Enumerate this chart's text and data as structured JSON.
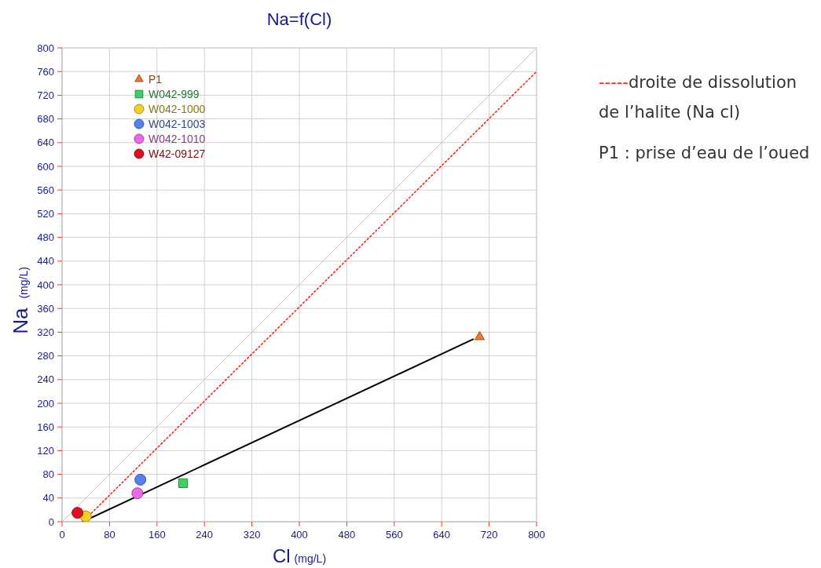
{
  "chart_data": {
    "type": "scatter",
    "title": "Na=f(Cl)",
    "xlabel": "Cl (mg/L)",
    "ylabel": "Na (mg/L)",
    "xlim": [
      0,
      800
    ],
    "ylim": [
      0,
      800
    ],
    "xticks": [
      0,
      80,
      160,
      240,
      320,
      400,
      480,
      560,
      640,
      720,
      800
    ],
    "yticks": [
      0,
      40,
      80,
      120,
      160,
      200,
      240,
      280,
      320,
      360,
      400,
      440,
      480,
      520,
      560,
      600,
      640,
      680,
      720,
      760,
      800
    ],
    "grid": true,
    "legend": "top left",
    "series": [
      {
        "type": "line",
        "color": "#c8c8c8",
        "x": [
          0,
          800
        ],
        "values": [
          0,
          800
        ],
        "marker": "none",
        "line_style": "solid"
      },
      {
        "type": "line",
        "color": "#ff2020",
        "x": [
          40,
          800
        ],
        "values": [
          5,
          760
        ],
        "marker": "none",
        "line_style": "dotted"
      },
      {
        "type": "line",
        "color": "#000000",
        "x": [
          35,
          693
        ],
        "values": [
          0,
          308
        ],
        "marker": "none",
        "line_style": "solid"
      },
      {
        "name": "P1",
        "color": "#f07830",
        "x": [
          704
        ],
        "values": [
          312
        ],
        "marker": "triangle"
      },
      {
        "name": "W042-999",
        "color": "#40d060",
        "x": [
          204
        ],
        "values": [
          65
        ],
        "marker": "square"
      },
      {
        "name": "W042-1000",
        "color": "#f5d020",
        "x": [
          40
        ],
        "values": [
          9
        ],
        "marker": "circle"
      },
      {
        "name": "W042-1003",
        "color": "#5580ee",
        "x": [
          132
        ],
        "values": [
          71
        ],
        "marker": "circle"
      },
      {
        "name": "W042-1010",
        "color": "#ee66ee",
        "x": [
          127
        ],
        "values": [
          48
        ],
        "marker": "circle"
      },
      {
        "name": "W42-09127",
        "color": "#e01020",
        "x": [
          26
        ],
        "values": [
          15
        ],
        "marker": "circle"
      }
    ],
    "annotations": [
      "-----droite de dissolution de  l’halite (Na cl)",
      "P1 : prise d’eau de l’oued"
    ]
  }
}
